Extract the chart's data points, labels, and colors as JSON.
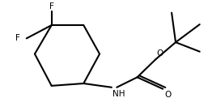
{
  "bg_color": "#ffffff",
  "line_color": "#000000",
  "label_color": "#000000",
  "line_width": 1.5,
  "font_size": 7.5,
  "figsize": [
    2.57,
    1.37
  ],
  "dpi": 100,
  "F1_label": "F",
  "F2_label": "F",
  "NH_label": "NH",
  "O_label": "O"
}
